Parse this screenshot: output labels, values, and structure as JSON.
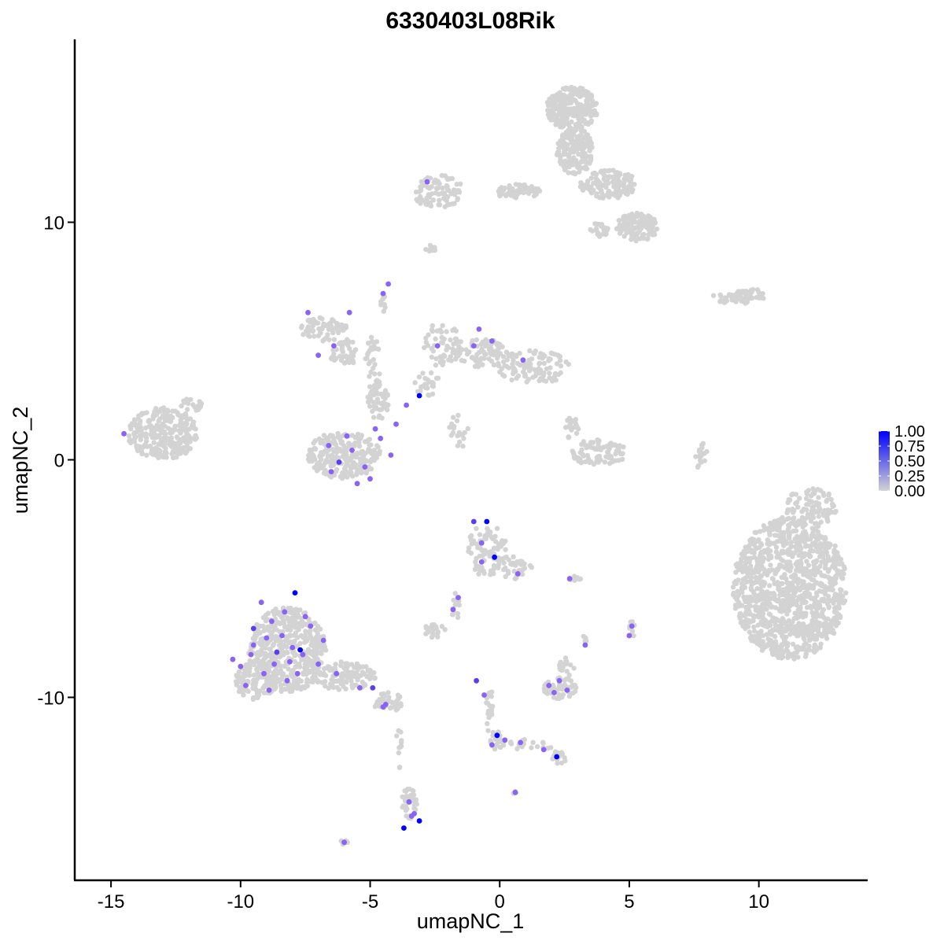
{
  "chart_data": {
    "type": "scatter",
    "title": "6330403L08Rik",
    "xlabel": "umapNC_1",
    "ylabel": "umapNC_2",
    "xlim": [
      -16.4,
      14.2
    ],
    "ylim": [
      -17.7,
      17.7
    ],
    "x_ticks": [
      -15,
      -10,
      -5,
      0,
      5,
      10
    ],
    "x_tick_labels": [
      "-15",
      "-10",
      "-5",
      "0",
      "5",
      "10"
    ],
    "y_ticks": [
      -10,
      0,
      10
    ],
    "y_tick_labels": [
      "-10",
      "0",
      "10"
    ],
    "grid": false,
    "legend": {
      "placement": "right",
      "type": "colorbar",
      "low_color": "#d3d3d3",
      "high_color": "#0000ff",
      "range": [
        0,
        1
      ],
      "ticks": [
        1.0,
        0.75,
        0.5,
        0.25,
        0.0
      ],
      "tick_labels": [
        "1.00",
        "0.75",
        "0.50",
        "0.25",
        "0.00"
      ]
    },
    "background_color": "#d3d3d3",
    "clusters": [
      {
        "x": 11.2,
        "y": -5.4,
        "rx": 2.2,
        "ry": 3.0,
        "n": 1100
      },
      {
        "x": 12.0,
        "y": -2.0,
        "rx": 1.0,
        "ry": 0.8,
        "n": 90
      },
      {
        "x": 12.3,
        "y": -7.2,
        "rx": 0.6,
        "ry": 0.25,
        "n": 40
      },
      {
        "x": 2.8,
        "y": 14.8,
        "rx": 1.0,
        "ry": 0.9,
        "n": 260
      },
      {
        "x": 2.9,
        "y": 13.0,
        "rx": 0.7,
        "ry": 1.0,
        "n": 160
      },
      {
        "x": 4.2,
        "y": 11.6,
        "rx": 1.1,
        "ry": 0.6,
        "n": 130
      },
      {
        "x": 5.3,
        "y": 9.8,
        "rx": 0.8,
        "ry": 0.6,
        "n": 120
      },
      {
        "x": 0.7,
        "y": 11.3,
        "rx": 0.9,
        "ry": 0.3,
        "n": 60
      },
      {
        "x": -2.4,
        "y": 11.3,
        "rx": 1.0,
        "ry": 0.7,
        "n": 90
      },
      {
        "x": 3.9,
        "y": 9.7,
        "rx": 0.4,
        "ry": 0.3,
        "n": 25
      },
      {
        "x": -2.7,
        "y": 8.9,
        "rx": 0.3,
        "ry": 0.15,
        "n": 10
      },
      {
        "x": 8.9,
        "y": 6.8,
        "rx": 0.8,
        "ry": 0.2,
        "n": 35
      },
      {
        "x": 9.6,
        "y": 6.9,
        "rx": 0.6,
        "ry": 0.35,
        "n": 35
      },
      {
        "x": -13.0,
        "y": 1.1,
        "rx": 1.35,
        "ry": 1.1,
        "n": 280
      },
      {
        "x": -11.9,
        "y": 2.3,
        "rx": 0.4,
        "ry": 0.3,
        "n": 20
      },
      {
        "x": -6.0,
        "y": 0.2,
        "rx": 1.4,
        "ry": 1.0,
        "n": 240
      },
      {
        "x": -4.7,
        "y": 2.4,
        "rx": 0.45,
        "ry": 0.7,
        "n": 45
      },
      {
        "x": -6.8,
        "y": 5.5,
        "rx": 0.9,
        "ry": 0.5,
        "n": 70
      },
      {
        "x": -6.0,
        "y": 4.5,
        "rx": 0.55,
        "ry": 0.6,
        "n": 45
      },
      {
        "x": -4.9,
        "y": 3.8,
        "rx": 0.3,
        "ry": 1.4,
        "n": 40
      },
      {
        "x": -4.5,
        "y": 6.6,
        "rx": 0.12,
        "ry": 0.4,
        "n": 10
      },
      {
        "x": -2.2,
        "y": 4.8,
        "rx": 0.75,
        "ry": 1.0,
        "n": 60
      },
      {
        "x": -2.8,
        "y": 3.2,
        "rx": 0.5,
        "ry": 0.5,
        "n": 25
      },
      {
        "x": -0.7,
        "y": 4.5,
        "rx": 1.0,
        "ry": 0.6,
        "n": 70
      },
      {
        "x": 1.3,
        "y": 3.9,
        "rx": 1.4,
        "ry": 0.7,
        "n": 100
      },
      {
        "x": -1.6,
        "y": 1.2,
        "rx": 0.4,
        "ry": 0.7,
        "n": 20
      },
      {
        "x": 3.8,
        "y": 0.3,
        "rx": 1.1,
        "ry": 0.55,
        "n": 80
      },
      {
        "x": 2.8,
        "y": 1.3,
        "rx": 0.3,
        "ry": 0.5,
        "n": 20
      },
      {
        "x": 7.8,
        "y": 0.1,
        "rx": 0.25,
        "ry": 0.6,
        "n": 20
      },
      {
        "x": -0.5,
        "y": -3.8,
        "rx": 0.8,
        "ry": 1.1,
        "n": 90
      },
      {
        "x": 0.7,
        "y": -4.6,
        "rx": 0.6,
        "ry": 0.6,
        "n": 30
      },
      {
        "x": -1.7,
        "y": -6.1,
        "rx": 0.2,
        "ry": 0.6,
        "n": 12
      },
      {
        "x": -2.5,
        "y": -7.2,
        "rx": 0.5,
        "ry": 0.3,
        "n": 25
      },
      {
        "x": -8.2,
        "y": -8.0,
        "rx": 1.5,
        "ry": 1.8,
        "n": 480
      },
      {
        "x": -9.4,
        "y": -9.3,
        "rx": 0.8,
        "ry": 0.8,
        "n": 120
      },
      {
        "x": -6.0,
        "y": -9.1,
        "rx": 1.2,
        "ry": 0.6,
        "n": 110
      },
      {
        "x": -4.3,
        "y": -10.2,
        "rx": 0.6,
        "ry": 0.4,
        "n": 40
      },
      {
        "x": -3.5,
        "y": -14.5,
        "rx": 0.3,
        "ry": 0.7,
        "n": 40
      },
      {
        "x": -3.9,
        "y": -12.2,
        "rx": 0.12,
        "ry": 1.2,
        "n": 12
      },
      {
        "x": -6.0,
        "y": -16.1,
        "rx": 0.15,
        "ry": 0.1,
        "n": 6
      },
      {
        "x": -0.4,
        "y": -10.5,
        "rx": 0.15,
        "ry": 1.0,
        "n": 20
      },
      {
        "x": -0.1,
        "y": -11.8,
        "rx": 0.3,
        "ry": 0.4,
        "n": 30
      },
      {
        "x": 1.2,
        "y": -12.0,
        "rx": 0.9,
        "ry": 0.25,
        "n": 20
      },
      {
        "x": 2.3,
        "y": -12.5,
        "rx": 0.3,
        "ry": 0.3,
        "n": 20
      },
      {
        "x": 2.3,
        "y": -9.6,
        "rx": 0.65,
        "ry": 0.45,
        "n": 55
      },
      {
        "x": 2.6,
        "y": -8.7,
        "rx": 0.3,
        "ry": 0.4,
        "n": 15
      },
      {
        "x": 3.3,
        "y": -7.6,
        "rx": 0.1,
        "ry": 0.25,
        "n": 5
      },
      {
        "x": 5.1,
        "y": -7.1,
        "rx": 0.15,
        "ry": 0.35,
        "n": 12
      },
      {
        "x": 2.9,
        "y": -5.0,
        "rx": 0.25,
        "ry": 0.1,
        "n": 8
      },
      {
        "x": 0.6,
        "y": -14.0,
        "rx": 0.1,
        "ry": 0.1,
        "n": 4
      }
    ],
    "expressing_points": [
      {
        "x": -9.2,
        "y": -6.0,
        "v": 0.7
      },
      {
        "x": -8.8,
        "y": -6.8,
        "v": 0.7
      },
      {
        "x": -8.4,
        "y": -7.4,
        "v": 0.7
      },
      {
        "x": -9.5,
        "y": -7.8,
        "v": 0.7
      },
      {
        "x": -8.0,
        "y": -7.9,
        "v": 0.8
      },
      {
        "x": -7.6,
        "y": -8.2,
        "v": 0.7
      },
      {
        "x": -8.7,
        "y": -8.6,
        "v": 0.7
      },
      {
        "x": -9.1,
        "y": -9.0,
        "v": 0.7
      },
      {
        "x": -10.0,
        "y": -8.7,
        "v": 0.7
      },
      {
        "x": -7.3,
        "y": -7.0,
        "v": 0.7
      },
      {
        "x": -8.6,
        "y": -8.1,
        "v": 0.9
      },
      {
        "x": -7.9,
        "y": -5.6,
        "v": 1.0
      },
      {
        "x": -9.5,
        "y": -7.1,
        "v": 0.9
      },
      {
        "x": -7.7,
        "y": -8.0,
        "v": 0.95
      },
      {
        "x": -9.8,
        "y": -9.5,
        "v": 0.7
      },
      {
        "x": -8.2,
        "y": -9.3,
        "v": 0.7
      },
      {
        "x": -7.0,
        "y": -8.6,
        "v": 0.7
      },
      {
        "x": -6.3,
        "y": -9.0,
        "v": 0.7
      },
      {
        "x": -5.4,
        "y": -9.6,
        "v": 0.7
      },
      {
        "x": -4.9,
        "y": -9.6,
        "v": 0.9
      },
      {
        "x": -4.4,
        "y": -10.3,
        "v": 0.7
      },
      {
        "x": -10.3,
        "y": -8.4,
        "v": 0.7
      },
      {
        "x": -9.0,
        "y": -7.5,
        "v": 0.7
      },
      {
        "x": -8.3,
        "y": -6.4,
        "v": 0.7
      },
      {
        "x": -7.5,
        "y": -6.6,
        "v": 0.7
      },
      {
        "x": -8.9,
        "y": -9.7,
        "v": 0.7
      },
      {
        "x": -7.8,
        "y": -9.0,
        "v": 0.7
      },
      {
        "x": -6.8,
        "y": -7.6,
        "v": 0.7
      },
      {
        "x": -9.6,
        "y": -8.2,
        "v": 0.7
      },
      {
        "x": -8.1,
        "y": -8.5,
        "v": 0.7
      },
      {
        "x": -6.5,
        "y": -0.5,
        "v": 0.7
      },
      {
        "x": -6.2,
        "y": -0.1,
        "v": 0.9
      },
      {
        "x": -5.7,
        "y": 0.4,
        "v": 0.7
      },
      {
        "x": -5.2,
        "y": -0.3,
        "v": 0.7
      },
      {
        "x": -4.6,
        "y": 0.9,
        "v": 0.7
      },
      {
        "x": -4.2,
        "y": 0.2,
        "v": 0.7
      },
      {
        "x": -5.9,
        "y": 1.0,
        "v": 0.7
      },
      {
        "x": -6.6,
        "y": 0.6,
        "v": 0.7
      },
      {
        "x": -5.0,
        "y": -0.8,
        "v": 0.7
      },
      {
        "x": -5.5,
        "y": -1.0,
        "v": 0.7
      },
      {
        "x": -4.8,
        "y": 1.3,
        "v": 0.7
      },
      {
        "x": -4.0,
        "y": 1.5,
        "v": 0.7
      },
      {
        "x": -3.6,
        "y": 2.3,
        "v": 0.7
      },
      {
        "x": -3.1,
        "y": 2.7,
        "v": 1.0
      },
      {
        "x": -2.4,
        "y": 4.8,
        "v": 0.7
      },
      {
        "x": -0.8,
        "y": 5.5,
        "v": 0.7
      },
      {
        "x": -1.0,
        "y": 4.8,
        "v": 0.7
      },
      {
        "x": -0.3,
        "y": 5.0,
        "v": 0.7
      },
      {
        "x": 0.9,
        "y": 4.2,
        "v": 0.7
      },
      {
        "x": -4.3,
        "y": 7.4,
        "v": 0.7
      },
      {
        "x": -4.5,
        "y": 7.0,
        "v": 0.7
      },
      {
        "x": -7.4,
        "y": 6.2,
        "v": 0.7
      },
      {
        "x": -7.0,
        "y": 4.4,
        "v": 0.7
      },
      {
        "x": -6.4,
        "y": 4.8,
        "v": 0.7
      },
      {
        "x": -5.8,
        "y": 6.2,
        "v": 0.7
      },
      {
        "x": -14.5,
        "y": 1.1,
        "v": 0.7
      },
      {
        "x": -2.8,
        "y": 11.7,
        "v": 0.7
      },
      {
        "x": -1.0,
        "y": -2.6,
        "v": 0.9
      },
      {
        "x": -0.5,
        "y": -2.6,
        "v": 1.0
      },
      {
        "x": -0.2,
        "y": -4.1,
        "v": 1.0
      },
      {
        "x": -0.7,
        "y": -3.5,
        "v": 0.7
      },
      {
        "x": 0.7,
        "y": -4.8,
        "v": 0.7
      },
      {
        "x": -0.7,
        "y": -4.3,
        "v": 0.7
      },
      {
        "x": -1.6,
        "y": -5.8,
        "v": 0.7
      },
      {
        "x": -1.8,
        "y": -6.3,
        "v": 0.7
      },
      {
        "x": 2.7,
        "y": -5.0,
        "v": 0.7
      },
      {
        "x": -0.9,
        "y": -9.3,
        "v": 0.9
      },
      {
        "x": -0.6,
        "y": -9.9,
        "v": 0.7
      },
      {
        "x": -0.1,
        "y": -11.6,
        "v": 1.0
      },
      {
        "x": 0.2,
        "y": -11.8,
        "v": 0.8
      },
      {
        "x": 0.8,
        "y": -11.9,
        "v": 0.7
      },
      {
        "x": 1.7,
        "y": -12.2,
        "v": 0.7
      },
      {
        "x": 2.2,
        "y": -12.5,
        "v": 1.0
      },
      {
        "x": -0.3,
        "y": -12.0,
        "v": 0.7
      },
      {
        "x": 1.9,
        "y": -9.5,
        "v": 0.7
      },
      {
        "x": 2.3,
        "y": -9.3,
        "v": 0.7
      },
      {
        "x": 2.6,
        "y": -9.7,
        "v": 0.7
      },
      {
        "x": 2.1,
        "y": -9.8,
        "v": 0.7
      },
      {
        "x": 3.3,
        "y": -7.8,
        "v": 0.7
      },
      {
        "x": 5.1,
        "y": -7.0,
        "v": 0.7
      },
      {
        "x": 5.0,
        "y": -7.4,
        "v": 0.7
      },
      {
        "x": -3.5,
        "y": -14.4,
        "v": 0.7
      },
      {
        "x": -3.3,
        "y": -14.9,
        "v": 0.8
      },
      {
        "x": -3.1,
        "y": -15.2,
        "v": 1.0
      },
      {
        "x": -3.7,
        "y": -15.5,
        "v": 1.0
      },
      {
        "x": -3.4,
        "y": -15.0,
        "v": 0.7
      },
      {
        "x": 0.6,
        "y": -14.0,
        "v": 0.7
      },
      {
        "x": -6.0,
        "y": -16.1,
        "v": 0.7
      },
      {
        "x": -4.5,
        "y": -10.4,
        "v": 0.7
      }
    ]
  }
}
